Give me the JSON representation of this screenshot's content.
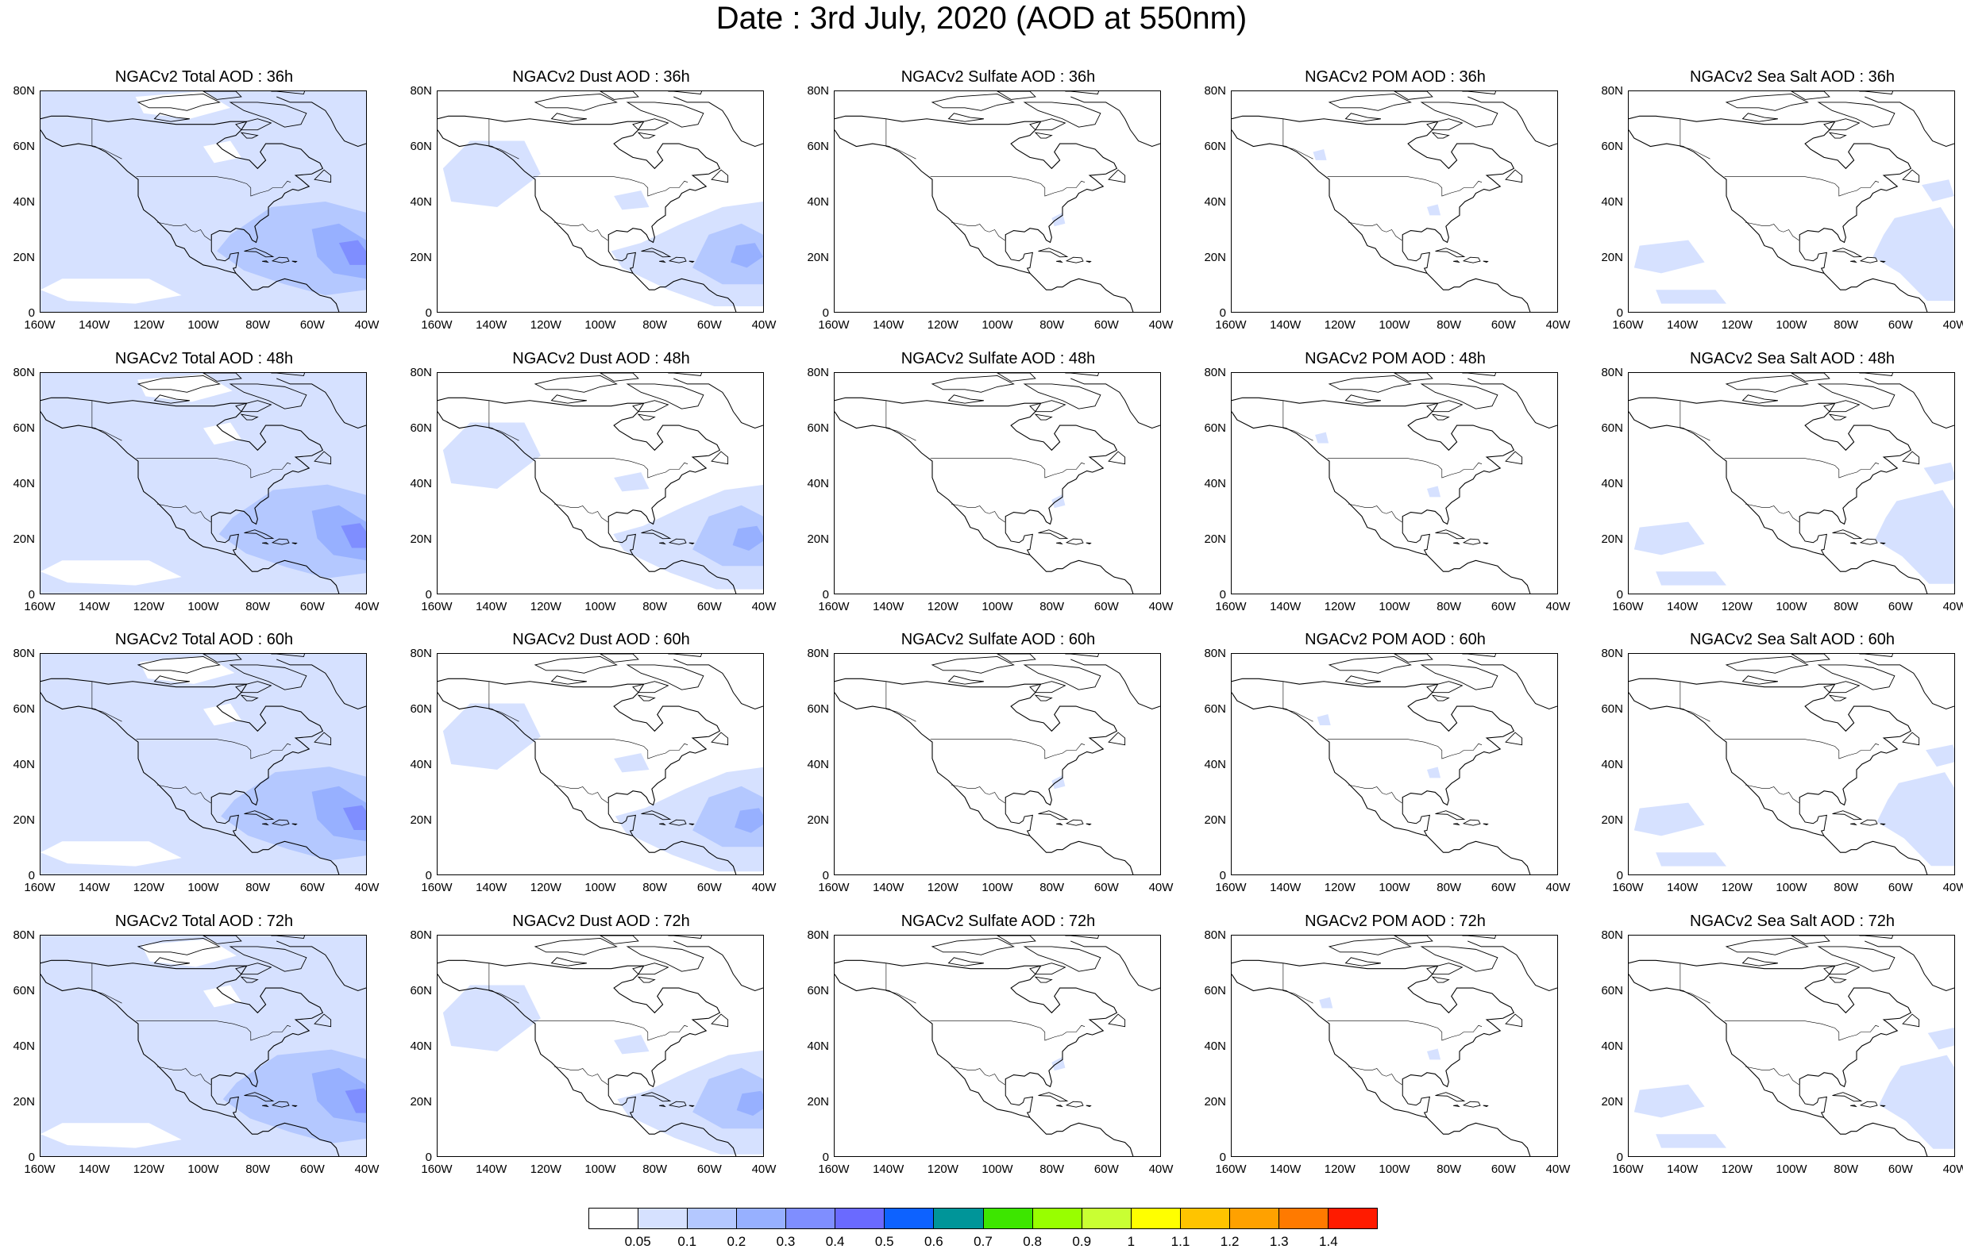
{
  "title": "Date : 3rd July, 2020 (AOD at 550nm)",
  "lat_labels": [
    "80N",
    "60N",
    "40N",
    "20N",
    "0"
  ],
  "lon_labels": [
    "160W",
    "140W",
    "120W",
    "100W",
    "80W",
    "60W",
    "40W"
  ],
  "species": [
    {
      "key": "total",
      "color_level": 2
    },
    {
      "key": "dust",
      "color_level": 1
    },
    {
      "key": "sulfate",
      "color_level": 0
    },
    {
      "key": "pom",
      "color_level": 0
    },
    {
      "key": "seasalt",
      "color_level": 1
    }
  ],
  "panels": [
    [
      "NGACv2 Total AOD : 36h",
      "NGACv2 Dust AOD : 36h",
      "NGACv2 Sulfate AOD : 36h",
      "NGACv2 POM AOD : 36h",
      "NGACv2 Sea Salt AOD : 36h"
    ],
    [
      "NGACv2 Total AOD : 48h",
      "NGACv2 Dust AOD : 48h",
      "NGACv2 Sulfate AOD : 48h",
      "NGACv2 POM AOD : 48h",
      "NGACv2 Sea Salt AOD : 48h"
    ],
    [
      "NGACv2 Total AOD : 60h",
      "NGACv2 Dust AOD : 60h",
      "NGACv2 Sulfate AOD : 60h",
      "NGACv2 POM AOD : 60h",
      "NGACv2 Sea Salt AOD : 60h"
    ],
    [
      "NGACv2 Total AOD : 72h",
      "NGACv2 Dust AOD : 72h",
      "NGACv2 Sulfate AOD : 72h",
      "NGACv2 POM AOD : 72h",
      "NGACv2 Sea Salt  AOD : 72h"
    ]
  ],
  "colorbar": {
    "labels": [
      "0.05",
      "0.1",
      "0.2",
      "0.3",
      "0.4",
      "0.5",
      "0.6",
      "0.7",
      "0.8",
      "0.9",
      "1",
      "1.1",
      "1.2",
      "1.3",
      "1.4"
    ],
    "colors": [
      "#ffffff",
      "#d6e1ff",
      "#b4c8ff",
      "#97b0ff",
      "#7f8eff",
      "#6a6aff",
      "#0d62ff",
      "#009599",
      "#3de600",
      "#98ff00",
      "#c9ff33",
      "#ffff00",
      "#ffc400",
      "#ffa100",
      "#ff7a00",
      "#ff1b00"
    ]
  }
}
